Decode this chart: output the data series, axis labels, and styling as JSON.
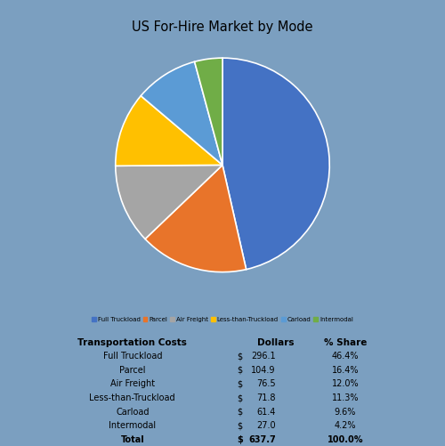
{
  "title": "US For-Hire Market by Mode",
  "background_color": "#7b9fc0",
  "pie_background": "#ffffff",
  "labels": [
    "Full Truckload",
    "Parcel",
    "Air Freight",
    "Less-than-Truckload",
    "Carload",
    "Intermodal"
  ],
  "values": [
    46.4,
    16.4,
    12.0,
    11.3,
    9.6,
    4.2
  ],
  "colors": [
    "#4472C4",
    "#E8742A",
    "#A5A5A5",
    "#FFC000",
    "#5B9BD5",
    "#70AD47"
  ],
  "table_header": [
    "Transportation Costs",
    "Dollars",
    "% Share"
  ],
  "table_rows": [
    [
      "Full Truckload",
      "$",
      "296.1",
      "46.4%"
    ],
    [
      "Parcel",
      "$",
      "104.9",
      "16.4%"
    ],
    [
      "Air Freight",
      "$",
      "76.5",
      "12.0%"
    ],
    [
      "Less-than-Truckload",
      "$",
      "71.8",
      "11.3%"
    ],
    [
      "Carload",
      "$",
      "61.4",
      "9.6%"
    ],
    [
      "Intermodal",
      "$",
      "27.0",
      "4.2%"
    ],
    [
      "Total",
      "$",
      "637.7",
      "100.0%"
    ]
  ],
  "startangle": 90
}
